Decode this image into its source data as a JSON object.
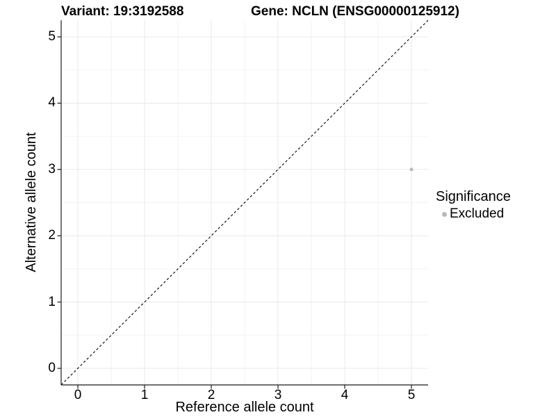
{
  "titles": {
    "variant": "Variant: 19:3192588",
    "gene": "Gene: NCLN (ENSG00000125912)"
  },
  "chart_data": {
    "type": "scatter",
    "xlabel": "Reference allele count",
    "ylabel": "Alternative allele count",
    "xlim": [
      -0.25,
      5.25
    ],
    "ylim": [
      -0.25,
      5.25
    ],
    "x_ticks": [
      0,
      1,
      2,
      3,
      4,
      5
    ],
    "y_ticks": [
      0,
      1,
      2,
      3,
      4,
      5
    ],
    "x_minor_ticks": [
      0.5,
      1.5,
      2.5,
      3.5,
      4.5
    ],
    "y_minor_ticks": [
      0.5,
      1.5,
      2.5,
      3.5,
      4.5
    ],
    "grid": true,
    "points": [
      {
        "x": 5,
        "y": 3,
        "significance": "Excluded"
      }
    ],
    "reference_line": {
      "slope": 1,
      "intercept": 0,
      "style": "dashed"
    },
    "legend": {
      "title": "Significance",
      "position": "right",
      "entries": [
        {
          "label": "Excluded",
          "color": "#b9b9b9"
        }
      ]
    }
  },
  "colors": {
    "background": "#ffffff",
    "grid_major": "#e8e8e8",
    "grid_minor": "#f3f3f3",
    "axis_line": "#1a1a1a",
    "tick_mark": "#1a1a1a",
    "reference_line": "#000000",
    "point_excluded": "#b9b9b9",
    "text": "#000000"
  }
}
